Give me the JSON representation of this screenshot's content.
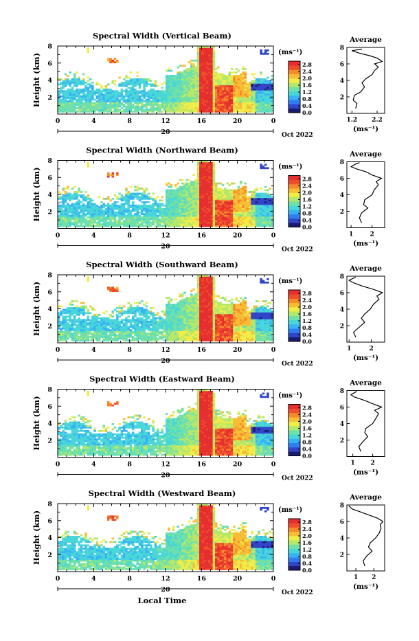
{
  "figure": {
    "xlabel": "Local Time",
    "date_label": "Oct 2022",
    "day_label": "20",
    "height_label": "Height (km)",
    "unit_label": "(ms⁻¹)",
    "avg_title": "Average"
  },
  "colors": {
    "scale": [
      "#1a1a6e",
      "#3045c8",
      "#2f7df0",
      "#38b2f5",
      "#49d6d8",
      "#6fe0a8",
      "#b5e86a",
      "#f0ec48",
      "#f7bd35",
      "#f58a2c",
      "#ef4d2c",
      "#e62e2e"
    ]
  },
  "chart_data": [
    {
      "type": "heatmap",
      "title": "Spectral Width (Vertical Beam)",
      "ylabel": "Height (km)",
      "x_ticks": [
        "0",
        "4",
        "8",
        "12",
        "16",
        "20",
        "0"
      ],
      "y_ticks": [
        "2",
        "4",
        "6",
        "8"
      ],
      "xlim": [
        0,
        24
      ],
      "ylim": [
        0,
        8
      ],
      "colorbar": {
        "ticks": [
          "0.0",
          "0.4",
          "0.8",
          "1.2",
          "1.6",
          "2.0",
          "2.4",
          "2.8"
        ],
        "range": [
          0,
          3.0
        ]
      },
      "avg": {
        "title": "Average",
        "xlabel": "(ms⁻¹)",
        "x_ticks": [
          "1.2",
          "2.2"
        ],
        "xlim": [
          1.0,
          2.5
        ],
        "y_ticks": [
          "2",
          "4",
          "6",
          "8"
        ],
        "profile": [
          [
            1.35,
            0.6
          ],
          [
            1.4,
            1.2
          ],
          [
            1.25,
            1.6
          ],
          [
            1.3,
            2.2
          ],
          [
            1.55,
            2.6
          ],
          [
            1.7,
            3.2
          ],
          [
            1.6,
            3.7
          ],
          [
            1.75,
            4.2
          ],
          [
            2.0,
            4.7
          ],
          [
            2.1,
            5.2
          ],
          [
            2.25,
            5.6
          ],
          [
            2.1,
            6.0
          ],
          [
            2.4,
            6.3
          ],
          [
            2.2,
            6.7
          ],
          [
            1.9,
            7.0
          ],
          [
            1.5,
            7.3
          ],
          [
            1.2,
            7.6
          ],
          [
            1.6,
            7.8
          ]
        ]
      }
    },
    {
      "type": "heatmap",
      "title": "Spectral Width (Northward Beam)",
      "ylabel": "Height (km)",
      "x_ticks": [
        "0",
        "4",
        "8",
        "12",
        "16",
        "20",
        "0"
      ],
      "y_ticks": [
        "2",
        "4",
        "6",
        "8"
      ],
      "xlim": [
        0,
        24
      ],
      "ylim": [
        0,
        8
      ],
      "colorbar": {
        "ticks": [
          "0.0",
          "0.4",
          "0.8",
          "1.2",
          "1.6",
          "2.0",
          "2.4",
          "2.8"
        ],
        "range": [
          0,
          3.0
        ]
      },
      "avg": {
        "title": "Average",
        "xlabel": "(ms⁻¹)",
        "x_ticks": [
          "1",
          "2"
        ],
        "xlim": [
          0.8,
          2.6
        ],
        "y_ticks": [
          "2",
          "4",
          "6",
          "8"
        ],
        "profile": [
          [
            1.5,
            0.6
          ],
          [
            1.4,
            1.2
          ],
          [
            1.5,
            1.8
          ],
          [
            1.8,
            2.4
          ],
          [
            1.6,
            2.8
          ],
          [
            1.65,
            3.4
          ],
          [
            2.0,
            4.0
          ],
          [
            2.1,
            4.6
          ],
          [
            2.3,
            5.2
          ],
          [
            2.2,
            5.6
          ],
          [
            2.45,
            6.0
          ],
          [
            2.0,
            6.4
          ],
          [
            1.7,
            6.8
          ],
          [
            1.3,
            7.1
          ],
          [
            1.0,
            7.4
          ],
          [
            1.2,
            7.7
          ],
          [
            1.4,
            7.9
          ]
        ]
      }
    },
    {
      "type": "heatmap",
      "title": "Spectral Width (Southward Beam)",
      "ylabel": "Height (km)",
      "x_ticks": [
        "0",
        "4",
        "8",
        "12",
        "16",
        "20",
        "0"
      ],
      "y_ticks": [
        "2",
        "4",
        "6",
        "8"
      ],
      "xlim": [
        0,
        24
      ],
      "ylim": [
        0,
        8
      ],
      "colorbar": {
        "ticks": [
          "0.0",
          "0.4",
          "0.8",
          "1.2",
          "1.6",
          "2.0",
          "2.4",
          "2.8"
        ],
        "range": [
          0,
          3.0
        ]
      },
      "avg": {
        "title": "Average",
        "xlabel": "(ms⁻¹)",
        "x_ticks": [
          "1",
          "2"
        ],
        "xlim": [
          0.9,
          2.6
        ],
        "y_ticks": [
          "2",
          "4",
          "6",
          "8"
        ],
        "profile": [
          [
            1.3,
            0.6
          ],
          [
            1.2,
            1.2
          ],
          [
            1.45,
            1.8
          ],
          [
            1.7,
            2.4
          ],
          [
            1.55,
            2.9
          ],
          [
            1.7,
            3.4
          ],
          [
            1.95,
            4.0
          ],
          [
            2.1,
            4.6
          ],
          [
            2.35,
            5.2
          ],
          [
            2.25,
            5.6
          ],
          [
            2.5,
            6.0
          ],
          [
            2.1,
            6.4
          ],
          [
            1.6,
            6.8
          ],
          [
            1.2,
            7.2
          ],
          [
            1.0,
            7.5
          ],
          [
            1.3,
            7.9
          ]
        ]
      }
    },
    {
      "type": "heatmap",
      "title": "Spectral Width (Eastward Beam)",
      "ylabel": "Height (km)",
      "x_ticks": [
        "0",
        "4",
        "8",
        "12",
        "16",
        "20",
        "0"
      ],
      "y_ticks": [
        "2",
        "4",
        "6",
        "8"
      ],
      "xlim": [
        0,
        24
      ],
      "ylim": [
        0,
        8
      ],
      "colorbar": {
        "ticks": [
          "0.0",
          "0.4",
          "0.8",
          "1.2",
          "1.6",
          "2.0",
          "2.4",
          "2.8"
        ],
        "range": [
          0,
          3.0
        ]
      },
      "avg": {
        "title": "Average",
        "xlabel": "(ms⁻¹)",
        "x_ticks": [
          "1",
          "2"
        ],
        "xlim": [
          0.7,
          2.6
        ],
        "y_ticks": [
          "2",
          "4",
          "6",
          "8"
        ],
        "profile": [
          [
            1.4,
            0.6
          ],
          [
            1.3,
            1.2
          ],
          [
            1.5,
            1.8
          ],
          [
            1.75,
            2.4
          ],
          [
            1.6,
            2.9
          ],
          [
            1.65,
            3.4
          ],
          [
            2.0,
            4.0
          ],
          [
            2.15,
            4.6
          ],
          [
            2.3,
            5.2
          ],
          [
            2.1,
            5.6
          ],
          [
            2.45,
            6.0
          ],
          [
            2.0,
            6.4
          ],
          [
            1.6,
            6.8
          ],
          [
            1.1,
            7.2
          ],
          [
            0.9,
            7.5
          ],
          [
            1.2,
            7.9
          ]
        ]
      }
    },
    {
      "type": "heatmap",
      "title": "Spectral Width (Westward Beam)",
      "ylabel": "Height (km)",
      "x_ticks": [
        "0",
        "4",
        "8",
        "12",
        "16",
        "20",
        "0"
      ],
      "y_ticks": [
        "2",
        "4",
        "6",
        "8"
      ],
      "xlim": [
        0,
        24
      ],
      "ylim": [
        0,
        8
      ],
      "colorbar": {
        "ticks": [
          "0.0",
          "0.4",
          "0.8",
          "1.2",
          "1.6",
          "2.0",
          "2.4",
          "2.8"
        ],
        "range": [
          0,
          3.0
        ]
      },
      "avg": {
        "title": "Average",
        "xlabel": "(ms⁻¹)",
        "x_ticks": [
          "1",
          "2"
        ],
        "xlim": [
          0.5,
          2.6
        ],
        "y_ticks": [
          "2",
          "4",
          "6",
          "8"
        ],
        "profile": [
          [
            1.5,
            0.6
          ],
          [
            1.4,
            1.2
          ],
          [
            1.6,
            1.8
          ],
          [
            1.9,
            2.4
          ],
          [
            1.7,
            2.9
          ],
          [
            1.8,
            3.4
          ],
          [
            2.1,
            4.0
          ],
          [
            2.3,
            4.6
          ],
          [
            2.4,
            5.2
          ],
          [
            2.35,
            5.6
          ],
          [
            2.5,
            6.0
          ],
          [
            2.2,
            6.4
          ],
          [
            1.7,
            6.8
          ],
          [
            1.2,
            7.2
          ],
          [
            0.8,
            7.5
          ],
          [
            0.6,
            7.9
          ]
        ]
      }
    }
  ]
}
